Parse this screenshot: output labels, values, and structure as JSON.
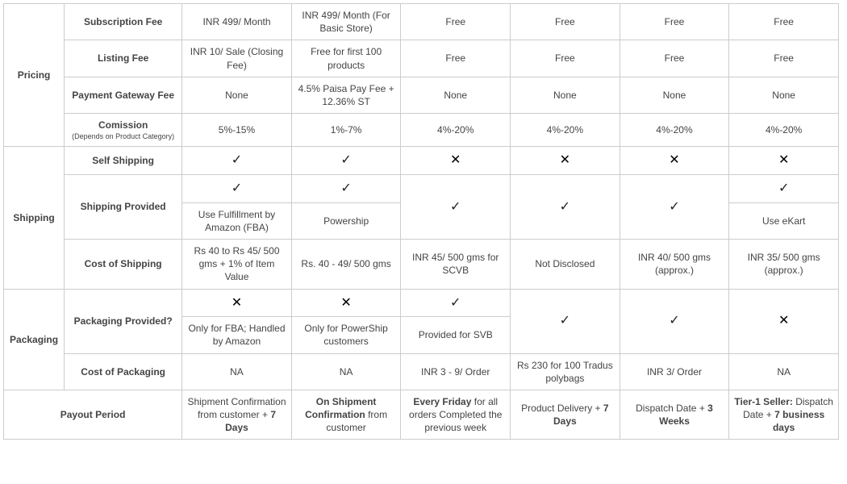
{
  "marks": {
    "check": "✓",
    "cross": "✕"
  },
  "groups": {
    "pricing": "Pricing",
    "shipping": "Shipping",
    "packaging": "Packaging"
  },
  "labels": {
    "subscription_fee": "Subscription Fee",
    "listing_fee": "Listing Fee",
    "payment_gateway_fee": "Payment Gateway Fee",
    "commission": "Comission",
    "commission_sub": "(Depends on Product Category)",
    "self_shipping": "Self Shipping",
    "shipping_provided": "Shipping Provided",
    "cost_of_shipping": "Cost of Shipping",
    "packaging_provided": "Packaging Provided?",
    "cost_of_packaging": "Cost of Packaging",
    "payout_period": "Payout Period"
  },
  "rows": {
    "subscription_fee": [
      "INR 499/ Month",
      "INR 499/ Month (For Basic Store)",
      "Free",
      "Free",
      "Free",
      "Free"
    ],
    "listing_fee": [
      "INR 10/ Sale (Closing Fee)",
      "Free for first 100 products",
      "Free",
      "Free",
      "Free",
      "Free"
    ],
    "payment_gateway_fee": [
      "None",
      "4.5% Paisa Pay Fee + 12.36% ST",
      "None",
      "None",
      "None",
      "None"
    ],
    "commission": [
      "5%-15%",
      "1%-7%",
      "4%-20%",
      "4%-20%",
      "4%-20%",
      "4%-20%"
    ],
    "self_shipping": [
      "check",
      "check",
      "cross",
      "cross",
      "cross",
      "cross"
    ],
    "shipping_provided_top": [
      "check",
      "check",
      "check",
      "check",
      "check",
      "check"
    ],
    "shipping_provided_detail": [
      "Use Fulfillment by Amazon (FBA)",
      "Powership",
      "",
      "",
      "",
      "Use eKart"
    ],
    "cost_of_shipping": [
      "Rs 40 to Rs 45/ 500 gms + 1% of Item Value",
      "Rs. 40 - 49/ 500 gms",
      "INR 45/ 500 gms for SCVB",
      "Not Disclosed",
      "INR 40/ 500 gms (approx.)",
      "INR 35/ 500 gms (approx.)"
    ],
    "packaging_provided_top": [
      "cross",
      "cross",
      "check",
      "check",
      "check",
      "cross"
    ],
    "packaging_provided_detail": [
      "Only for FBA; Handled by Amazon",
      "Only for PowerShip customers",
      "Provided for SVB",
      "",
      "",
      ""
    ],
    "cost_of_packaging": [
      "NA",
      "NA",
      "INR 3 - 9/ Order",
      "Rs 230 for 100 Tradus polybags",
      "INR 3/ Order",
      "NA"
    ]
  },
  "payout": {
    "c1_a": "Shipment Confirmation from customer + ",
    "c1_b": "7 Days",
    "c2_a": "On Shipment Confirmation",
    "c2_b": " from customer",
    "c3_a": "Every Friday",
    "c3_b": " for all orders Completed the previous week",
    "c4_a": "Product Delivery + ",
    "c4_b": "7 Days",
    "c5_a": "Dispatch Date + ",
    "c5_b": "3 Weeks",
    "c6_a": "Tier-1 Seller:",
    "c6_b": " Dispatch Date + ",
    "c6_c": "7 business days"
  }
}
